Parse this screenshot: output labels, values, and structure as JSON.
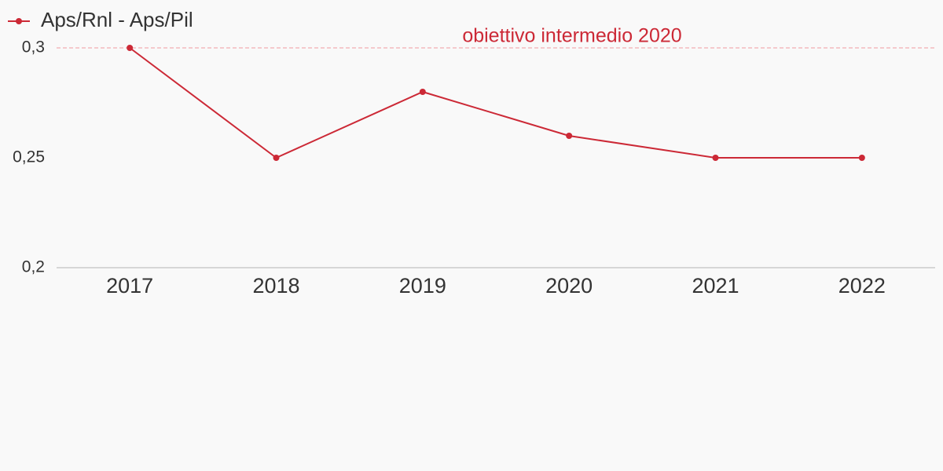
{
  "chart_data": {
    "type": "line",
    "categories": [
      "2017",
      "2018",
      "2019",
      "2020",
      "2021",
      "2022"
    ],
    "series": [
      {
        "name": "Aps/Rnl - Aps/Pil",
        "color": "#cc2936",
        "values": [
          0.3,
          0.25,
          0.28,
          0.26,
          0.25,
          0.25
        ]
      }
    ],
    "ylim": [
      0.2,
      0.3
    ],
    "yticks": [
      {
        "value": 0.2,
        "label": "0,2"
      },
      {
        "value": 0.25,
        "label": "0,25"
      },
      {
        "value": 0.3,
        "label": "0,3"
      }
    ],
    "reference_lines": [
      {
        "value": 0.3,
        "label": "obiettivo intermedio 2020",
        "color": "#cc2936",
        "line_color": "#f4b9bd"
      }
    ],
    "legend": "top-left"
  }
}
